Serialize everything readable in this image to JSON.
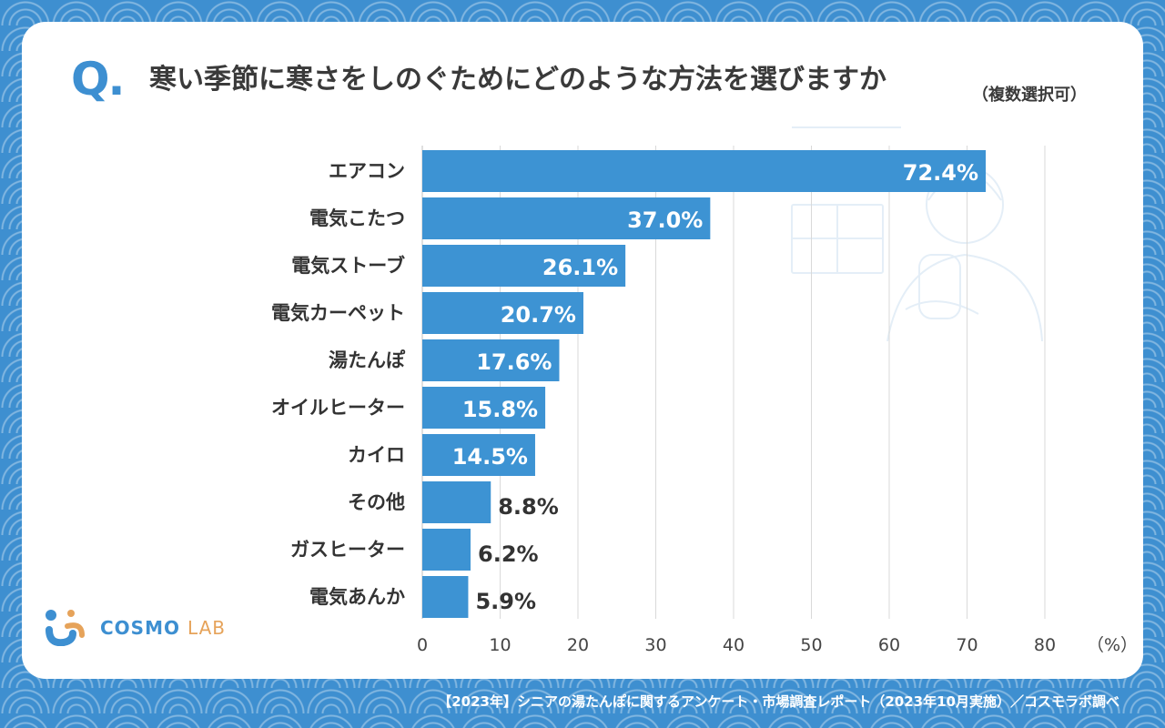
{
  "header": {
    "q_mark": "Q.",
    "title": "寒い季節に寒さをしのぐためにどのような方法を選びますか",
    "note": "（複数選択可）"
  },
  "logo": {
    "text_main": "COSMO",
    "text_sub": "LAB"
  },
  "footer": {
    "text": "【2023年】シニアの湯たんぽに関するアンケート・市場調査レポート（2023年10月実施）／コスモラボ調べ"
  },
  "colors": {
    "bar": "#3d93d3",
    "accent": "#3d8fd1",
    "grid": "#d9d9d9"
  },
  "chart_data": {
    "type": "bar",
    "orientation": "horizontal",
    "categories": [
      "エアコン",
      "電気こたつ",
      "電気ストーブ",
      "電気カーペット",
      "湯たんぽ",
      "オイルヒーター",
      "カイロ",
      "その他",
      "ガスヒーター",
      "電気あんか"
    ],
    "values": [
      72.4,
      37.0,
      26.1,
      20.7,
      17.6,
      15.8,
      14.5,
      8.8,
      6.2,
      5.9
    ],
    "value_labels": [
      "72.4%",
      "37.0%",
      "26.1%",
      "20.7%",
      "17.6%",
      "15.8%",
      "14.5%",
      "8.8%",
      "6.2%",
      "5.9%"
    ],
    "x_ticks": [
      "0",
      "10",
      "20",
      "30",
      "40",
      "50",
      "60",
      "70",
      "80"
    ],
    "x_unit": "（%）",
    "xlim": [
      0,
      80
    ],
    "grid": true
  }
}
